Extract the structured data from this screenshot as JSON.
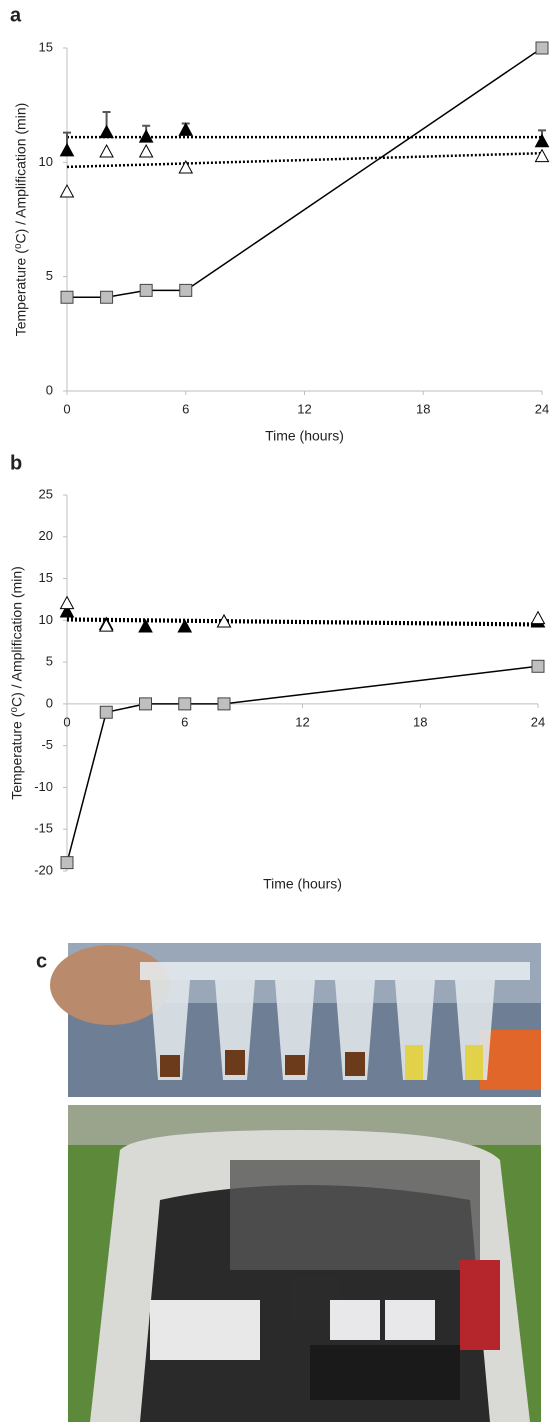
{
  "chart_data": [
    {
      "type": "line",
      "panel_label": "a",
      "xlabel": "Time (hours)",
      "ylabel": "Temperature (⁰C) / Amplification (min)",
      "xlim": [
        0,
        24
      ],
      "xticks": [
        0,
        6,
        12,
        18,
        24
      ],
      "ylim": [
        0,
        15
      ],
      "yticks": [
        0,
        5,
        10,
        15
      ],
      "series": [
        {
          "color": "#bfbfbf",
          "marker": "square",
          "line": true,
          "x": [
            0,
            2,
            4,
            6,
            24
          ],
          "values": [
            4.1,
            4.1,
            4.4,
            4.4,
            15
          ]
        },
        {
          "color": "#000000",
          "marker": "triangle",
          "line": false,
          "x": [
            0,
            2,
            4,
            6,
            24
          ],
          "values": [
            10.5,
            11.3,
            11.1,
            11.4,
            10.9
          ],
          "errors": [
            0.8,
            0.9,
            0.5,
            0.3,
            0.5
          ]
        },
        {
          "color": "#ffffff",
          "marker": "triangle",
          "line": false,
          "x": [
            0,
            2,
            4,
            6,
            24
          ],
          "values": [
            8.7,
            10.45,
            10.45,
            9.75,
            10.25
          ]
        }
      ],
      "trendlines": [
        {
          "x": [
            0,
            24
          ],
          "values": [
            11.1,
            11.1
          ]
        },
        {
          "x": [
            0,
            24
          ],
          "values": [
            9.8,
            10.4
          ]
        }
      ]
    },
    {
      "type": "line",
      "panel_label": "b",
      "xlabel": "Time (hours)",
      "ylabel": "Temperature (⁰C) / Amplification (min)",
      "xlim": [
        0,
        24
      ],
      "xticks": [
        0,
        6,
        12,
        18,
        24
      ],
      "ylim": [
        -20,
        25
      ],
      "yticks": [
        -20,
        -15,
        -10,
        -5,
        0,
        5,
        10,
        15,
        20,
        25
      ],
      "series": [
        {
          "color": "#bfbfbf",
          "marker": "square",
          "line": true,
          "x": [
            0,
            2,
            4,
            6,
            8,
            24
          ],
          "values": [
            -19,
            -1,
            0,
            0,
            0,
            4.5
          ]
        },
        {
          "color": "#000000",
          "marker": "triangle",
          "line": false,
          "x": [
            0,
            2,
            4,
            6,
            8,
            24
          ],
          "values": [
            11,
            9.5,
            9.2,
            9.2,
            9.8,
            9.8
          ]
        },
        {
          "color": "#ffffff",
          "marker": "triangle",
          "line": false,
          "x": [
            0,
            2,
            8,
            24
          ],
          "values": [
            12,
            9.3,
            9.8,
            10.2
          ]
        }
      ],
      "trendlines": [
        {
          "x": [
            0,
            24
          ],
          "values": [
            10.2,
            9.6
          ]
        },
        {
          "x": [
            0,
            24
          ],
          "values": [
            10,
            9.4
          ]
        }
      ]
    }
  ],
  "panel_c": {
    "label": "c"
  }
}
